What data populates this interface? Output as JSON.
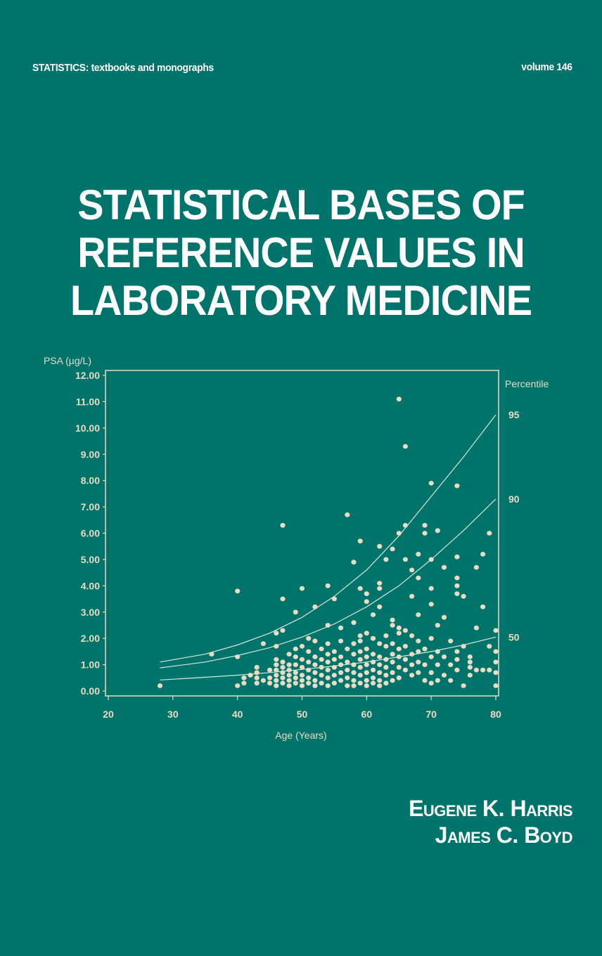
{
  "cover": {
    "series": "STATISTICS: textbooks and monographs",
    "volume": "volume 146",
    "title_lines": [
      "STATISTICAL BASES OF",
      "REFERENCE VALUES IN",
      "LABORATORY MEDICINE"
    ],
    "authors": [
      "Eugene K. Harris",
      "James C. Boyd"
    ],
    "colors": {
      "background": "#00736a",
      "text": "#ffffff",
      "chart_ink": "#e8dcc4",
      "curve": "#d8e8dc"
    }
  },
  "chart_data": {
    "type": "scatter",
    "title": "",
    "xlabel": "Age (Years)",
    "ylabel": "PSA (µg/L)",
    "right_axis_title": "Percentile",
    "xlim": [
      20,
      80
    ],
    "ylim": [
      0,
      12
    ],
    "x_ticks": [
      20,
      30,
      40,
      50,
      60,
      70,
      80
    ],
    "y_ticks": [
      "0.00",
      "1.00",
      "2.00",
      "3.00",
      "4.00",
      "5.00",
      "6.00",
      "7.00",
      "8.00",
      "9.00",
      "10.00",
      "11.00",
      "12.00"
    ],
    "grid": false,
    "percentile_curves": [
      {
        "name": "95",
        "label_y": 10.5,
        "points": [
          [
            28,
            1.1
          ],
          [
            35,
            1.4
          ],
          [
            40,
            1.75
          ],
          [
            45,
            2.2
          ],
          [
            50,
            2.8
          ],
          [
            55,
            3.6
          ],
          [
            60,
            4.6
          ],
          [
            65,
            5.9
          ],
          [
            70,
            7.4
          ],
          [
            75,
            8.9
          ],
          [
            80,
            10.5
          ]
        ]
      },
      {
        "name": "90",
        "label_y": 7.3,
        "points": [
          [
            28,
            0.88
          ],
          [
            35,
            1.1
          ],
          [
            40,
            1.35
          ],
          [
            45,
            1.65
          ],
          [
            50,
            2.05
          ],
          [
            55,
            2.55
          ],
          [
            60,
            3.2
          ],
          [
            65,
            4.0
          ],
          [
            70,
            5.0
          ],
          [
            75,
            6.1
          ],
          [
            80,
            7.3
          ]
        ]
      },
      {
        "name": "50",
        "label_y": 2.05,
        "points": [
          [
            28,
            0.42
          ],
          [
            35,
            0.52
          ],
          [
            40,
            0.6
          ],
          [
            45,
            0.7
          ],
          [
            50,
            0.82
          ],
          [
            55,
            0.95
          ],
          [
            60,
            1.1
          ],
          [
            65,
            1.3
          ],
          [
            70,
            1.5
          ],
          [
            75,
            1.75
          ],
          [
            80,
            2.05
          ]
        ]
      }
    ],
    "points": [
      [
        28,
        0.2
      ],
      [
        36,
        1.4
      ],
      [
        40,
        3.8
      ],
      [
        40,
        1.3
      ],
      [
        40,
        0.2
      ],
      [
        41,
        0.5
      ],
      [
        41,
        0.3
      ],
      [
        42,
        0.6
      ],
      [
        43,
        0.3
      ],
      [
        43,
        0.9
      ],
      [
        43,
        0.7
      ],
      [
        43,
        0.5
      ],
      [
        44,
        1.8
      ],
      [
        44,
        0.4
      ],
      [
        45,
        0.8
      ],
      [
        45,
        0.5
      ],
      [
        45,
        0.3
      ],
      [
        46,
        2.2
      ],
      [
        46,
        1.7
      ],
      [
        46,
        1.2
      ],
      [
        46,
        1.0
      ],
      [
        46,
        0.8
      ],
      [
        46,
        0.6
      ],
      [
        46,
        0.4
      ],
      [
        46,
        0.2
      ],
      [
        47,
        6.3
      ],
      [
        47,
        3.5
      ],
      [
        47,
        2.3
      ],
      [
        47,
        1.1
      ],
      [
        47,
        0.9
      ],
      [
        47,
        0.7
      ],
      [
        47,
        0.5
      ],
      [
        47,
        0.3
      ],
      [
        48,
        1.4
      ],
      [
        48,
        1.0
      ],
      [
        48,
        0.8
      ],
      [
        48,
        0.6
      ],
      [
        48,
        0.4
      ],
      [
        48,
        0.2
      ],
      [
        49,
        3.0
      ],
      [
        49,
        1.6
      ],
      [
        49,
        1.3
      ],
      [
        49,
        1.0
      ],
      [
        49,
        0.7
      ],
      [
        49,
        0.5
      ],
      [
        49,
        0.3
      ],
      [
        50,
        3.9
      ],
      [
        50,
        1.7
      ],
      [
        50,
        1.2
      ],
      [
        50,
        0.9
      ],
      [
        50,
        0.6
      ],
      [
        50,
        0.4
      ],
      [
        50,
        0.2
      ],
      [
        51,
        2.0
      ],
      [
        51,
        1.5
      ],
      [
        51,
        1.1
      ],
      [
        51,
        0.8
      ],
      [
        51,
        0.5
      ],
      [
        51,
        0.3
      ],
      [
        52,
        3.2
      ],
      [
        52,
        1.9
      ],
      [
        52,
        1.3
      ],
      [
        52,
        1.0
      ],
      [
        52,
        0.7
      ],
      [
        52,
        0.4
      ],
      [
        52,
        0.2
      ],
      [
        53,
        1.6
      ],
      [
        53,
        1.2
      ],
      [
        53,
        0.9
      ],
      [
        53,
        0.6
      ],
      [
        53,
        0.3
      ],
      [
        54,
        4.0
      ],
      [
        54,
        2.5
      ],
      [
        54,
        1.8
      ],
      [
        54,
        1.4
      ],
      [
        54,
        1.1
      ],
      [
        54,
        0.8
      ],
      [
        54,
        0.5
      ],
      [
        54,
        0.2
      ],
      [
        55,
        3.5
      ],
      [
        55,
        1.5
      ],
      [
        55,
        1.2
      ],
      [
        55,
        0.9
      ],
      [
        55,
        0.6
      ],
      [
        55,
        0.3
      ],
      [
        56,
        2.4
      ],
      [
        56,
        1.9
      ],
      [
        56,
        1.3
      ],
      [
        56,
        1.0
      ],
      [
        56,
        0.7
      ],
      [
        56,
        0.4
      ],
      [
        57,
        6.7
      ],
      [
        57,
        1.6
      ],
      [
        57,
        1.1
      ],
      [
        57,
        0.8
      ],
      [
        57,
        0.5
      ],
      [
        57,
        0.2
      ],
      [
        58,
        4.9
      ],
      [
        58,
        2.6
      ],
      [
        58,
        1.8
      ],
      [
        58,
        1.4
      ],
      [
        58,
        1.0
      ],
      [
        58,
        0.7
      ],
      [
        58,
        0.4
      ],
      [
        58,
        0.2
      ],
      [
        59,
        5.7
      ],
      [
        59,
        3.9
      ],
      [
        59,
        2.1
      ],
      [
        59,
        1.9
      ],
      [
        59,
        1.5
      ],
      [
        59,
        1.2
      ],
      [
        59,
        0.9
      ],
      [
        59,
        0.6
      ],
      [
        59,
        0.3
      ],
      [
        60,
        3.7
      ],
      [
        60,
        3.4
      ],
      [
        60,
        2.2
      ],
      [
        60,
        1.6
      ],
      [
        60,
        1.3
      ],
      [
        60,
        1.0
      ],
      [
        60,
        0.7
      ],
      [
        60,
        0.4
      ],
      [
        60,
        0.2
      ],
      [
        61,
        2.9
      ],
      [
        61,
        2.0
      ],
      [
        61,
        1.4
      ],
      [
        61,
        1.1
      ],
      [
        61,
        0.8
      ],
      [
        61,
        0.5
      ],
      [
        61,
        0.3
      ],
      [
        62,
        5.5
      ],
      [
        62,
        4.1
      ],
      [
        62,
        3.9
      ],
      [
        62,
        3.2
      ],
      [
        62,
        1.8
      ],
      [
        62,
        1.3
      ],
      [
        62,
        1.0
      ],
      [
        62,
        0.7
      ],
      [
        62,
        0.4
      ],
      [
        62,
        0.2
      ],
      [
        63,
        5.0
      ],
      [
        63,
        2.1
      ],
      [
        63,
        1.7
      ],
      [
        63,
        1.2
      ],
      [
        63,
        0.9
      ],
      [
        63,
        0.6
      ],
      [
        63,
        0.3
      ],
      [
        64,
        5.4
      ],
      [
        64,
        2.7
      ],
      [
        64,
        2.5
      ],
      [
        64,
        1.8
      ],
      [
        64,
        1.4
      ],
      [
        64,
        1.1
      ],
      [
        64,
        0.7
      ],
      [
        64,
        0.4
      ],
      [
        65,
        11.1
      ],
      [
        65,
        6.0
      ],
      [
        65,
        2.4
      ],
      [
        65,
        2.2
      ],
      [
        65,
        1.6
      ],
      [
        65,
        1.3
      ],
      [
        65,
        0.9
      ],
      [
        65,
        0.5
      ],
      [
        66,
        9.3
      ],
      [
        66,
        6.3
      ],
      [
        66,
        5.0
      ],
      [
        66,
        2.3
      ],
      [
        66,
        1.7
      ],
      [
        66,
        1.2
      ],
      [
        66,
        0.8
      ],
      [
        67,
        4.6
      ],
      [
        67,
        3.6
      ],
      [
        67,
        2.1
      ],
      [
        67,
        1.4
      ],
      [
        67,
        1.0
      ],
      [
        67,
        0.6
      ],
      [
        68,
        5.2
      ],
      [
        68,
        4.3
      ],
      [
        68,
        2.9
      ],
      [
        68,
        1.9
      ],
      [
        68,
        1.5
      ],
      [
        68,
        1.1
      ],
      [
        68,
        0.7
      ],
      [
        69,
        6.3
      ],
      [
        69,
        6.0
      ],
      [
        69,
        1.6
      ],
      [
        69,
        1.0
      ],
      [
        69,
        0.4
      ],
      [
        70,
        7.9
      ],
      [
        70,
        5.0
      ],
      [
        70,
        3.9
      ],
      [
        70,
        3.3
      ],
      [
        70,
        2.0
      ],
      [
        70,
        1.3
      ],
      [
        70,
        0.7
      ],
      [
        70,
        0.3
      ],
      [
        71,
        6.1
      ],
      [
        71,
        2.5
      ],
      [
        71,
        1.5
      ],
      [
        71,
        1.0
      ],
      [
        71,
        0.4
      ],
      [
        72,
        4.7
      ],
      [
        72,
        2.8
      ],
      [
        72,
        1.3
      ],
      [
        72,
        0.6
      ],
      [
        73,
        1.9
      ],
      [
        73,
        1.0
      ],
      [
        73,
        0.4
      ],
      [
        74,
        7.8
      ],
      [
        74,
        5.1
      ],
      [
        74,
        4.3
      ],
      [
        74,
        4.0
      ],
      [
        74,
        3.7
      ],
      [
        74,
        1.5
      ],
      [
        74,
        1.2
      ],
      [
        74,
        0.8
      ],
      [
        75,
        3.6
      ],
      [
        75,
        1.7
      ],
      [
        75,
        0.2
      ],
      [
        76,
        1.3
      ],
      [
        76,
        1.1
      ],
      [
        76,
        0.9
      ],
      [
        76,
        0.6
      ],
      [
        77,
        4.7
      ],
      [
        77,
        2.4
      ],
      [
        77,
        0.8
      ],
      [
        78,
        5.2
      ],
      [
        78,
        3.2
      ],
      [
        78,
        0.8
      ],
      [
        79,
        6.0
      ],
      [
        79,
        1.7
      ],
      [
        79,
        0.8
      ],
      [
        80,
        2.3
      ],
      [
        80,
        1.5
      ],
      [
        80,
        1.1
      ],
      [
        80,
        0.7
      ],
      [
        80,
        0.2
      ]
    ]
  }
}
